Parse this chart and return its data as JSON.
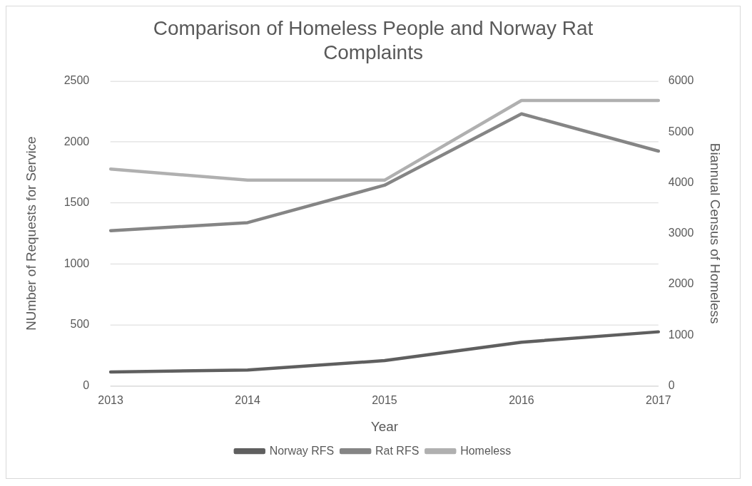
{
  "chart_data": {
    "type": "line",
    "title": [
      "Comparison of Homeless People and Norway Rat",
      "Complaints"
    ],
    "categories": [
      "2013",
      "2014",
      "2015",
      "2016",
      "2017"
    ],
    "xlabel": "Year",
    "ylabel": "NUmber of Requests for Service",
    "y2label": "Biannual Census of Homeless",
    "series": [
      {
        "name": "Norway RFS",
        "color": "#5f5f5f",
        "values": [
          114,
          129,
          207,
          358,
          443
        ]
      },
      {
        "name": "Rat RFS",
        "color": "#858585",
        "values": [
          1273,
          1339,
          1646,
          2232,
          1926
        ]
      },
      {
        "name": "Homeless",
        "color": "#b0b0b0",
        "axis": "y2",
        "values": [
          4270,
          4050,
          4050,
          5620,
          5620
        ]
      }
    ],
    "ylim": [
      0,
      2500
    ],
    "yticks": [
      0,
      500,
      1000,
      1500,
      2000,
      2500
    ],
    "y2lim": [
      0,
      6000
    ],
    "y2ticks": [
      0,
      1000,
      2000,
      3000,
      4000,
      5000,
      6000
    ],
    "grid": "y",
    "legend": "bottom",
    "marker": "none",
    "line_style": "solid"
  }
}
